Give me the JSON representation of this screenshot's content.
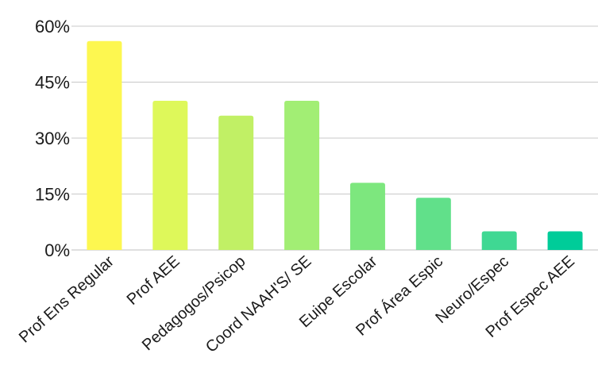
{
  "chart_data": {
    "type": "bar",
    "title": "",
    "xlabel": "",
    "ylabel": "",
    "categories": [
      "Prof Ens Regular",
      "Prof AEE",
      "Pedagogos/Psicop",
      "Coord NAAH'S/ SE",
      "Euipe Escolar",
      "Prof Área Espic",
      "Neuro/Espec",
      "Prof Espec AEE"
    ],
    "values": [
      56,
      40,
      36,
      40,
      18,
      14,
      5,
      5
    ],
    "ylim": [
      0,
      60
    ],
    "yticks": [
      0,
      15,
      30,
      45,
      60
    ],
    "ytick_labels": [
      "0%",
      "15%",
      "30%",
      "45%",
      "60%"
    ],
    "bar_colors": [
      "#fdf750",
      "#def85a",
      "#c1f065",
      "#a2ee74",
      "#7de77e",
      "#61e08a",
      "#3fd893",
      "#00cc99"
    ],
    "grid": true,
    "legend": "none"
  }
}
